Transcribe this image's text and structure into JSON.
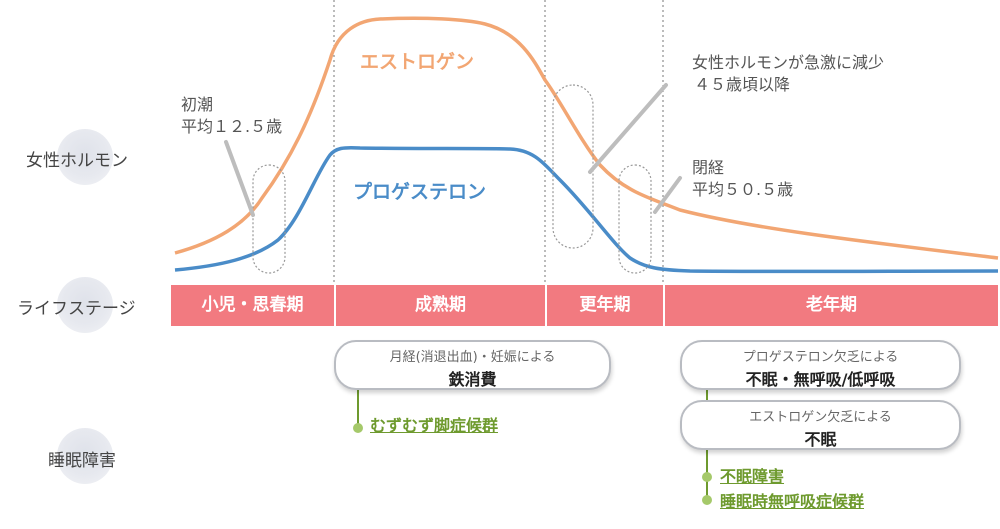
{
  "rows": {
    "hormone": "女性ホルモン",
    "lifestage": "ライフステージ",
    "sleep": "睡眠障害"
  },
  "curves": {
    "estrogen": {
      "label": "エストロゲン",
      "color": "#f2a673"
    },
    "progesterone": {
      "label": "プロゲステロン",
      "color": "#4a8cc8"
    }
  },
  "annotations": {
    "menarche": {
      "line1": "初潮",
      "line2": "平均１２.５歳"
    },
    "decline": {
      "line1": "女性ホルモンが急激に減少",
      "line2": "４５歳頃以降"
    },
    "menopause": {
      "line1": "閉経",
      "line2": "平均５０.５歳"
    }
  },
  "stages": [
    "小児・思春期",
    "成熟期",
    "更年期",
    "老年期"
  ],
  "stage_color": "#f27a80",
  "pills": {
    "iron": {
      "sub": "月経(消退出血)・妊娠による",
      "main": "鉄消費"
    },
    "progesterone_def": {
      "sub": "プロゲステロン欠乏による",
      "main": "不眠・無呼吸/低呼吸"
    },
    "estrogen_def": {
      "sub": "エストロゲン欠乏による",
      "main": "不眠"
    }
  },
  "effects": {
    "rls": "むずむず脚症候群",
    "insomnia": "不眠障害",
    "apnea": "睡眠時無呼吸症候群"
  },
  "effect_color": "#6e9a2e"
}
